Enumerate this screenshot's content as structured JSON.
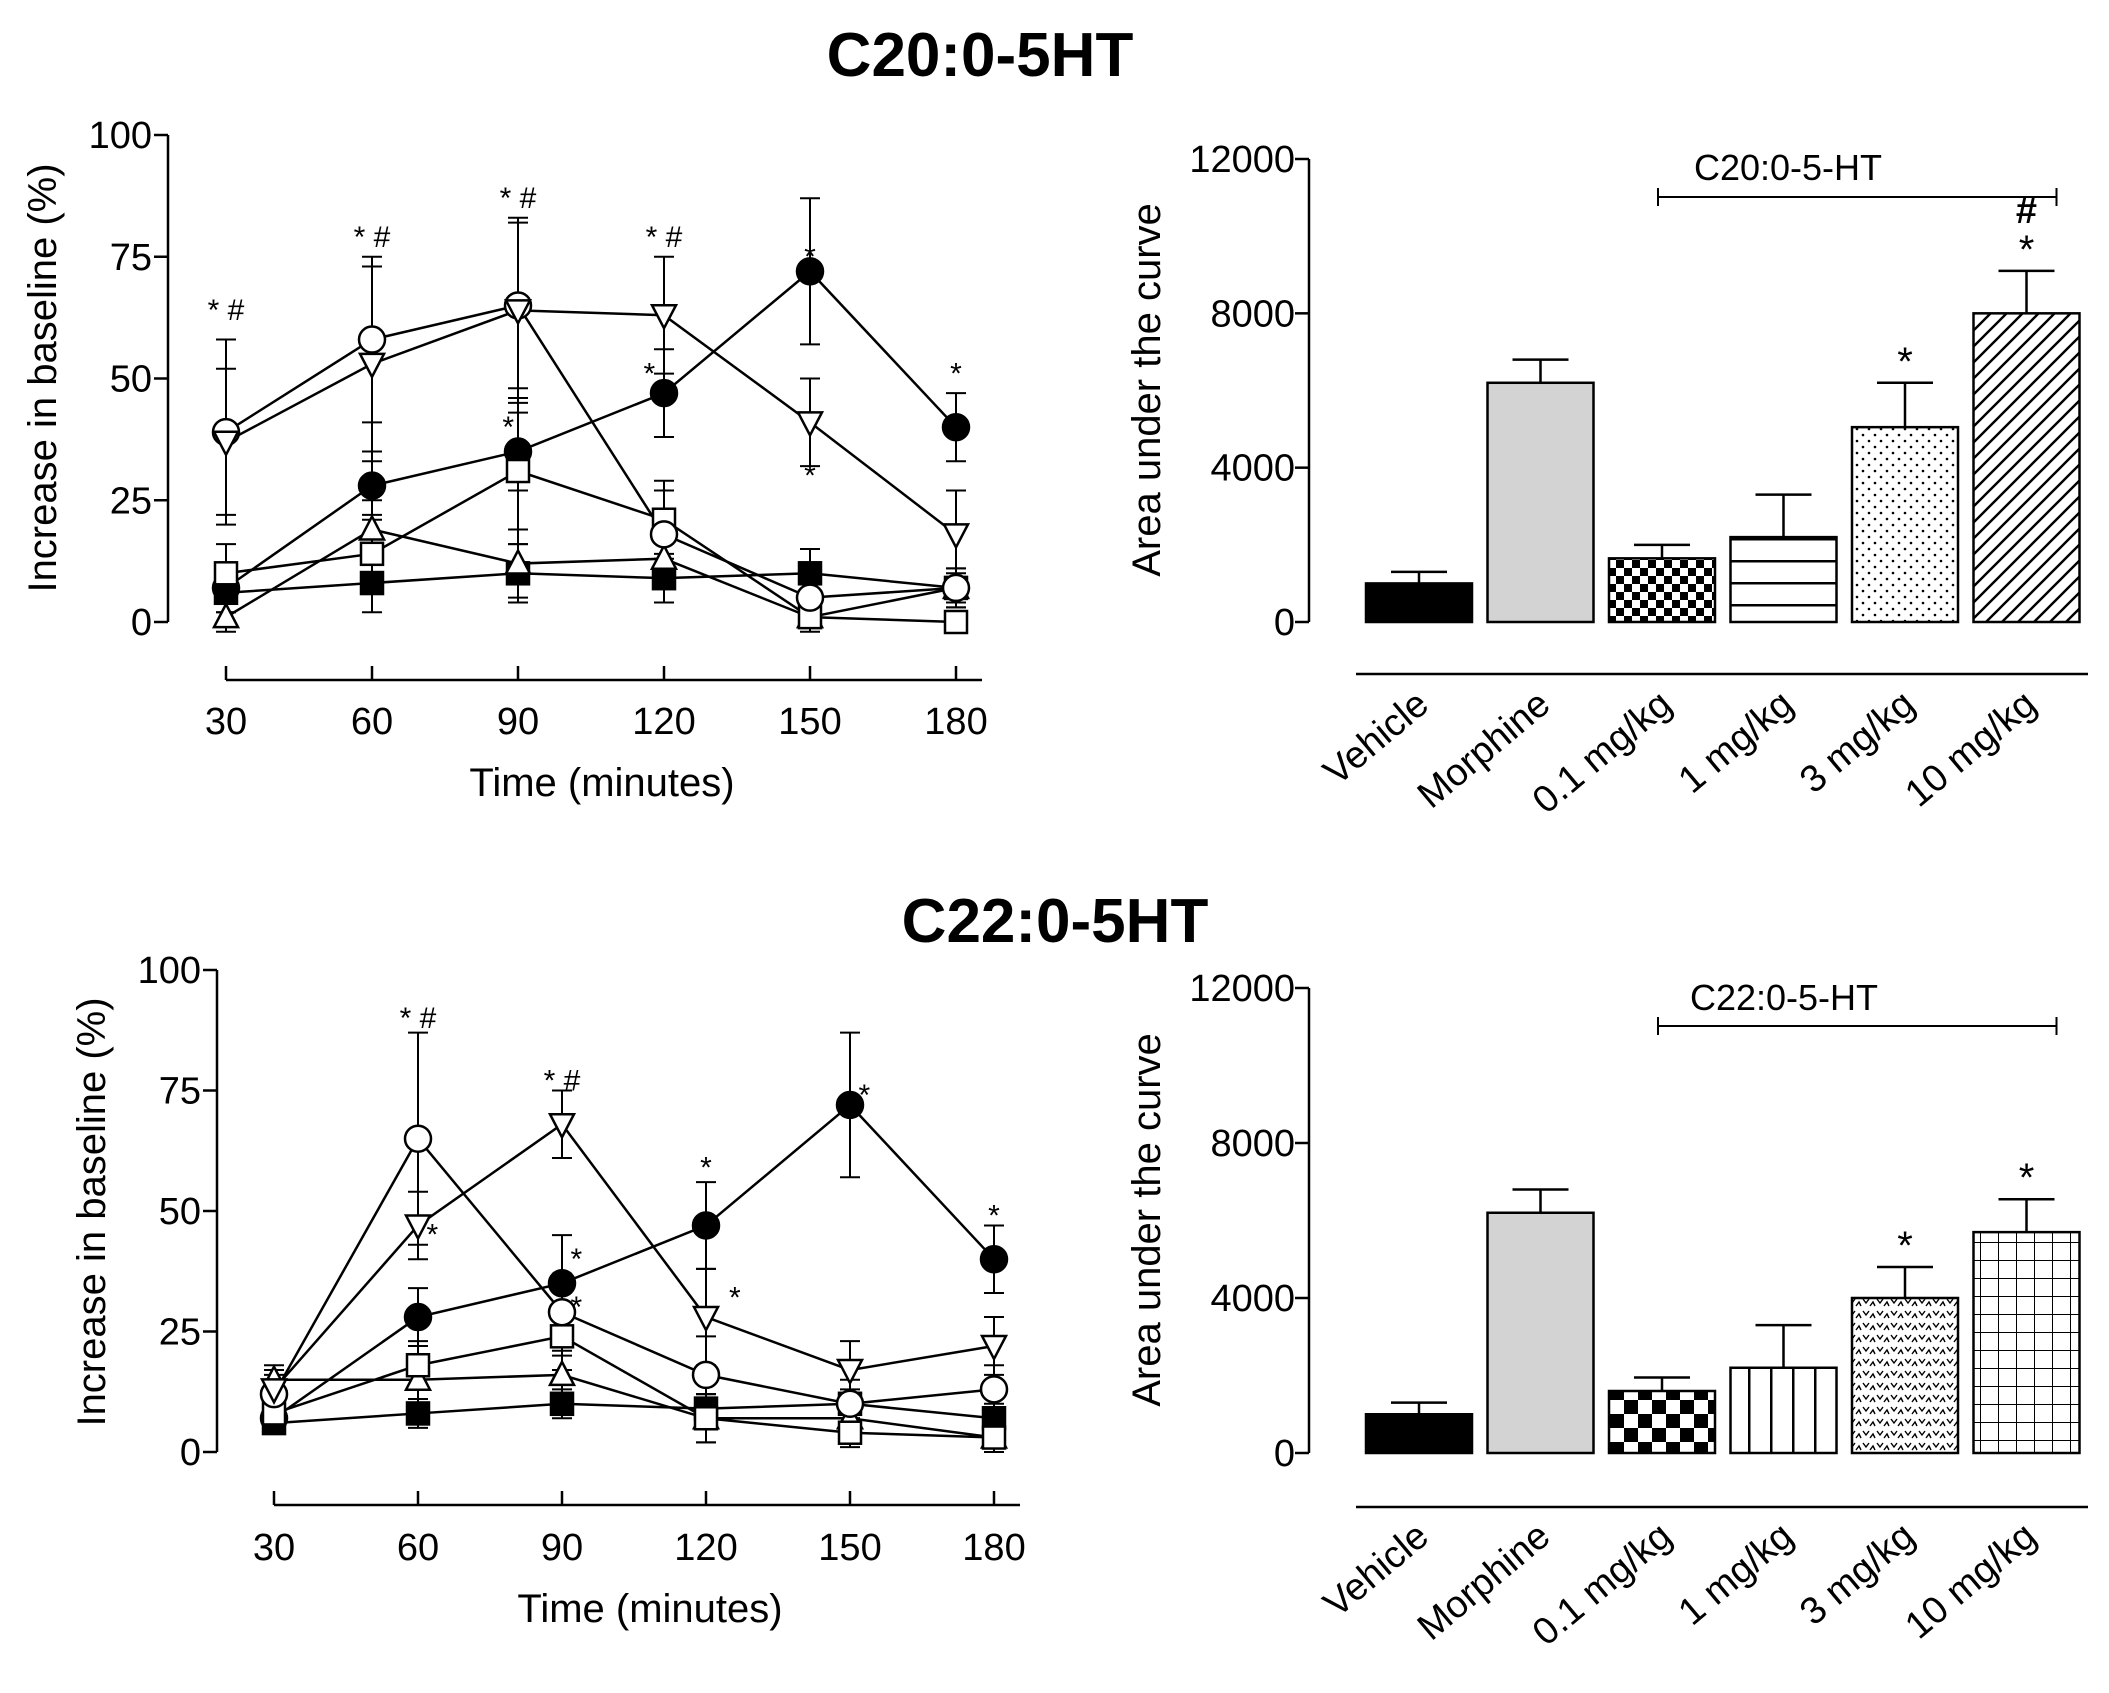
{
  "titles": {
    "top": "C20:0-5HT",
    "bottom": "C22:0-5HT"
  },
  "colors": {
    "ink": "#000000",
    "morphine_fill": "#d3d3d3",
    "background": "#ffffff"
  },
  "chart_data": [
    {
      "id": "c20-time-course",
      "type": "line",
      "xlabel": "Time (minutes)",
      "ylabel": "Increase in baseline (%)",
      "x": [
        30,
        60,
        90,
        120,
        150,
        180
      ],
      "xticks": [
        30,
        60,
        90,
        120,
        150,
        180
      ],
      "xtick_labels": [
        "30",
        "60",
        "90",
        "120",
        "150",
        "180"
      ],
      "xlim": [
        30,
        180
      ],
      "ylim": [
        0,
        100
      ],
      "yticks": [
        0,
        25,
        50,
        75,
        100
      ],
      "ytick_labels": [
        "0",
        "25",
        "50",
        "75",
        "100"
      ],
      "series": [
        {
          "name": "Vehicle",
          "marker": "filled-square",
          "values": [
            6,
            8,
            10,
            9,
            10,
            7
          ],
          "errors": [
            4,
            6,
            6,
            5,
            5,
            4
          ]
        },
        {
          "name": "Morphine",
          "marker": "filled-circle",
          "values": [
            7,
            28,
            35,
            47,
            72,
            40
          ],
          "errors": [
            5,
            7,
            8,
            9,
            15,
            7
          ]
        },
        {
          "name": "0.1 mg/kg",
          "marker": "open-triangle-up",
          "values": [
            1,
            19,
            12,
            13,
            1,
            7
          ],
          "errors": [
            3,
            6,
            7,
            6,
            3,
            3
          ]
        },
        {
          "name": "1 mg/kg",
          "marker": "open-square",
          "values": [
            10,
            14,
            31,
            21,
            1,
            0
          ],
          "errors": [
            6,
            8,
            15,
            8,
            2,
            2
          ]
        },
        {
          "name": "3 mg/kg",
          "marker": "open-circle",
          "values": [
            39,
            58,
            65,
            18,
            5,
            7
          ],
          "errors": [
            19,
            17,
            17,
            9,
            6,
            4
          ]
        },
        {
          "name": "10 mg/kg",
          "marker": "open-triangle-down",
          "values": [
            37,
            53,
            64,
            63,
            41,
            18
          ],
          "errors": [
            15,
            20,
            19,
            12,
            9,
            9
          ]
        }
      ],
      "annotations": [
        {
          "text": "* #",
          "x": 30,
          "y": 62
        },
        {
          "text": "* #",
          "x": 60,
          "y": 77
        },
        {
          "text": "* #",
          "x": 90,
          "y": 85
        },
        {
          "text": "* #",
          "x": 120,
          "y": 77
        },
        {
          "text": "*",
          "x": 150,
          "y": 73
        },
        {
          "text": "*",
          "x": 180,
          "y": 49
        },
        {
          "text": "*",
          "x": 88,
          "y": 38
        },
        {
          "text": "*",
          "x": 117,
          "y": 49
        },
        {
          "text": "*",
          "x": 150,
          "y": 28
        }
      ]
    },
    {
      "id": "c20-auc",
      "type": "bar",
      "ylabel": "Area under the curve",
      "categories": [
        "Vehicle",
        "Morphine",
        "0.1 mg/kg",
        "1 mg/kg",
        "3 mg/kg",
        "10 mg/kg"
      ],
      "values": [
        1000,
        6200,
        1650,
        2200,
        5050,
        8000
      ],
      "errors": [
        300,
        600,
        350,
        1100,
        1150,
        1100
      ],
      "patterns": [
        "solid-black",
        "solid-gray",
        "checker-small",
        "horizontal-lines",
        "dots",
        "diagonal-lines"
      ],
      "ylim": [
        0,
        12000
      ],
      "yticks": [
        0,
        4000,
        8000,
        12000
      ],
      "ytick_labels": [
        "0",
        "4000",
        "8000",
        "12000"
      ],
      "group_label": "C20:0-5-HT",
      "group_span": [
        2,
        5
      ],
      "bar_annotations": [
        {
          "index": 4,
          "text": "*"
        },
        {
          "index": 5,
          "text": "*"
        },
        {
          "index": 5,
          "text": "#"
        }
      ]
    },
    {
      "id": "c22-time-course",
      "type": "line",
      "xlabel": "Time (minutes)",
      "ylabel": "Increase in baseline (%)",
      "x": [
        30,
        60,
        90,
        120,
        150,
        180
      ],
      "xticks": [
        30,
        60,
        90,
        120,
        150,
        180
      ],
      "xtick_labels": [
        "30",
        "60",
        "90",
        "120",
        "150",
        "180"
      ],
      "xlim": [
        30,
        180
      ],
      "ylim": [
        0,
        100
      ],
      "yticks": [
        0,
        25,
        50,
        75,
        100
      ],
      "ytick_labels": [
        "0",
        "25",
        "50",
        "75",
        "100"
      ],
      "series": [
        {
          "name": "Vehicle",
          "marker": "filled-square",
          "values": [
            6,
            8,
            10,
            9,
            10,
            7
          ],
          "errors": [
            2,
            3,
            3,
            3,
            3,
            3
          ]
        },
        {
          "name": "Morphine",
          "marker": "filled-circle",
          "values": [
            7,
            28,
            35,
            47,
            72,
            40
          ],
          "errors": [
            3,
            6,
            10,
            9,
            15,
            7
          ]
        },
        {
          "name": "0.1 mg/kg",
          "marker": "open-triangle-up",
          "values": [
            15,
            15,
            16,
            7,
            7,
            3
          ],
          "errors": [
            3,
            4,
            4,
            5,
            3,
            3
          ]
        },
        {
          "name": "1 mg/kg",
          "marker": "open-square",
          "values": [
            8,
            18,
            24,
            7,
            4,
            3
          ],
          "errors": [
            3,
            5,
            7,
            5,
            3,
            3
          ]
        },
        {
          "name": "3 mg/kg",
          "marker": "open-circle",
          "values": [
            12,
            65,
            29,
            16,
            10,
            13
          ],
          "errors": [
            4,
            22,
            8,
            8,
            5,
            5
          ]
        },
        {
          "name": "10 mg/kg",
          "marker": "open-triangle-down",
          "values": [
            13,
            47,
            68,
            28,
            17,
            22
          ],
          "errors": [
            4,
            7,
            7,
            10,
            6,
            6
          ]
        }
      ],
      "annotations": [
        {
          "text": "* #",
          "x": 60,
          "y": 88
        },
        {
          "text": "* #",
          "x": 90,
          "y": 75
        },
        {
          "text": "*",
          "x": 120,
          "y": 57
        },
        {
          "text": "*",
          "x": 153,
          "y": 72
        },
        {
          "text": "*",
          "x": 180,
          "y": 47
        },
        {
          "text": "*",
          "x": 63,
          "y": 43
        },
        {
          "text": "*",
          "x": 93,
          "y": 38
        },
        {
          "text": "*",
          "x": 93,
          "y": 28
        },
        {
          "text": "*",
          "x": 126,
          "y": 30
        }
      ]
    },
    {
      "id": "c22-auc",
      "type": "bar",
      "ylabel": "Area under the curve",
      "categories": [
        "Vehicle",
        "Morphine",
        "0.1 mg/kg",
        "1  mg/kg",
        "3 mg/kg",
        "10 mg/kg"
      ],
      "values": [
        1000,
        6200,
        1600,
        2200,
        4000,
        5700
      ],
      "errors": [
        300,
        600,
        350,
        1100,
        800,
        850
      ],
      "patterns": [
        "solid-black",
        "solid-gray",
        "checker-large",
        "vertical-lines",
        "scribble",
        "grid"
      ],
      "ylim": [
        0,
        12000
      ],
      "yticks": [
        0,
        4000,
        8000,
        12000
      ],
      "ytick_labels": [
        "0",
        "4000",
        "8000",
        "12000"
      ],
      "group_label": "C22:0-5-HT",
      "group_span": [
        2,
        5
      ],
      "bar_annotations": [
        {
          "index": 4,
          "text": "*"
        },
        {
          "index": 5,
          "text": "*"
        }
      ]
    }
  ]
}
